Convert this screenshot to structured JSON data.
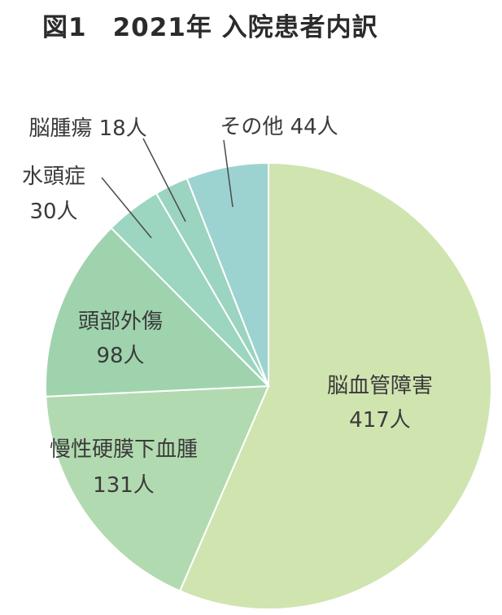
{
  "title": "図1　2021年 入院患者内訳",
  "chart_data": {
    "type": "pie",
    "title": "図1　2021年 入院患者内訳",
    "unit": "人",
    "start": "12 o'clock",
    "direction": "clockwise",
    "slices": [
      {
        "label": "脳血管障害",
        "value": 417,
        "value_text": "417人",
        "color": "#d0e4b0"
      },
      {
        "label": "慢性硬膜下血腫",
        "value": 131,
        "value_text": "131人",
        "color": "#b2dab0"
      },
      {
        "label": "頭部外傷",
        "value": 98,
        "value_text": "98人",
        "color": "#9fd3ad"
      },
      {
        "label": "水頭症",
        "value": 30,
        "value_text": "30人",
        "color": "#9cd5c0"
      },
      {
        "label": "脳腫瘍",
        "value": 18,
        "value_text": "18人",
        "color": "#9bd4c0"
      },
      {
        "label": "その他",
        "value": 44,
        "value_text": "44人",
        "color": "#9cd3d0"
      }
    ]
  }
}
